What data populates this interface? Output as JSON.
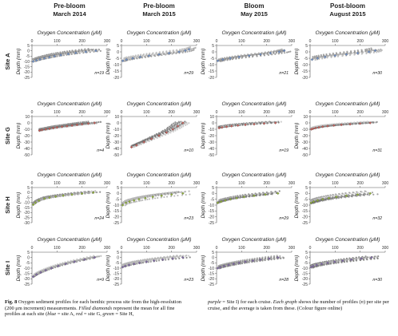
{
  "figure": {
    "columns": [
      {
        "title_line1": "Pre-bloom",
        "title_line2": "March 2014"
      },
      {
        "title_line1": "Pre-bloom",
        "title_line2": "March 2015"
      },
      {
        "title_line1": "Bloom",
        "title_line2": "May 2015"
      },
      {
        "title_line1": "Post-bloom",
        "title_line2": "August 2015"
      }
    ],
    "rows": [
      {
        "label": "Site A",
        "color": "#6f8fc4"
      },
      {
        "label": "Site G",
        "color": "#c0605a"
      },
      {
        "label": "Site H",
        "color": "#8fae3c"
      },
      {
        "label": "Site I",
        "color": "#7f6aa3"
      }
    ],
    "x_axis_title": "Oxygen Concentration (μM)",
    "y_axis_title": "Depth (mm)",
    "profile_gray": "#8a8a8a",
    "mean_marker_shape": "diamond"
  },
  "chart_data": [
    {
      "type": "scatter",
      "site": "Site A",
      "cruise": "Pre-bloom March 2014",
      "n_label": "n=19",
      "xlim": [
        0,
        300
      ],
      "xticks": [
        0,
        100,
        200,
        300
      ],
      "ylim": [
        -25,
        5
      ],
      "yticks": [
        5,
        0,
        -5,
        -10,
        -15,
        -20,
        -25
      ],
      "mean_profile": {
        "depth": [
          0,
          -1,
          -2,
          -3,
          -4,
          -5,
          -6,
          -7,
          -8,
          -9,
          -10
        ],
        "oxygen": [
          255,
          215,
          175,
          145,
          115,
          90,
          70,
          50,
          32,
          18,
          5
        ]
      }
    },
    {
      "type": "scatter",
      "site": "Site A",
      "cruise": "Pre-bloom March 2015",
      "n_label": "n=29",
      "xlim": [
        0,
        300
      ],
      "xticks": [
        0,
        100,
        200,
        300
      ],
      "ylim": [
        -20,
        5
      ],
      "yticks": [
        5,
        0,
        -5,
        -10,
        -15,
        -20
      ],
      "mean_profile": {
        "depth": [
          2,
          1,
          0,
          -1,
          -2,
          -3,
          -4,
          -5,
          -6,
          -7
        ],
        "oxygen": [
          270,
          255,
          230,
          190,
          150,
          110,
          75,
          45,
          20,
          5
        ]
      }
    },
    {
      "type": "scatter",
      "site": "Site A",
      "cruise": "Bloom May 2015",
      "n_label": "n=21",
      "xlim": [
        0,
        300
      ],
      "xticks": [
        0,
        100,
        200,
        300
      ],
      "ylim": [
        -20,
        5
      ],
      "yticks": [
        5,
        0,
        -5,
        -10,
        -15,
        -20
      ],
      "mean_profile": {
        "depth": [
          1,
          0,
          -1,
          -2,
          -3,
          -4,
          -5,
          -6,
          -7
        ],
        "oxygen": [
          270,
          250,
          215,
          175,
          130,
          90,
          55,
          25,
          5
        ]
      }
    },
    {
      "type": "scatter",
      "site": "Site A",
      "cruise": "Post-bloom August 2015",
      "n_label": "n=30",
      "xlim": [
        0,
        300
      ],
      "xticks": [
        0,
        100,
        200,
        300
      ],
      "ylim": [
        -20,
        5
      ],
      "yticks": [
        5,
        0,
        -5,
        -10,
        -15,
        -20
      ],
      "mean_profile": {
        "depth": [
          1,
          0,
          -1,
          -2,
          -3,
          -4,
          -5,
          -6
        ],
        "oxygen": [
          260,
          235,
          190,
          145,
          100,
          60,
          30,
          8
        ]
      }
    },
    {
      "type": "scatter",
      "site": "Site G",
      "cruise": "Pre-bloom March 2014",
      "n_label": "n=4",
      "xlim": [
        0,
        300
      ],
      "xticks": [
        0,
        100,
        200,
        300
      ],
      "ylim": [
        -50,
        10
      ],
      "yticks": [
        10,
        0,
        -10,
        -20,
        -30,
        -40,
        -50
      ],
      "mean_profile": {
        "depth": [
          0,
          -1,
          -2,
          -3,
          -4,
          -5,
          -6,
          -7,
          -8,
          -9,
          -10,
          -11,
          -12
        ],
        "oxygen": [
          250,
          225,
          200,
          180,
          160,
          140,
          120,
          100,
          85,
          70,
          55,
          40,
          30
        ]
      }
    },
    {
      "type": "scatter",
      "site": "Site G",
      "cruise": "Pre-bloom March 2015",
      "n_label": "n=10",
      "xlim": [
        0,
        300
      ],
      "xticks": [
        0,
        100,
        200,
        300
      ],
      "ylim": [
        -50,
        10
      ],
      "yticks": [
        10,
        0,
        -10,
        -20,
        -30,
        -40,
        -50
      ],
      "mean_profile": {
        "depth": [
          0,
          -5,
          -10,
          -15,
          -20,
          -25,
          -30,
          -35,
          -38
        ],
        "oxygen": [
          245,
          225,
          205,
          180,
          150,
          120,
          90,
          60,
          40
        ]
      }
    },
    {
      "type": "scatter",
      "site": "Site G",
      "cruise": "Bloom May 2015",
      "n_label": "n=19",
      "xlim": [
        0,
        300
      ],
      "xticks": [
        0,
        100,
        200,
        300
      ],
      "ylim": [
        -50,
        10
      ],
      "yticks": [
        10,
        0,
        -10,
        -20,
        -30,
        -40,
        -50
      ],
      "mean_profile": {
        "depth": [
          0,
          -1,
          -2,
          -3,
          -4,
          -5,
          -6,
          -7,
          -8
        ],
        "oxygen": [
          235,
          190,
          150,
          115,
          85,
          60,
          40,
          22,
          10
        ]
      }
    },
    {
      "type": "scatter",
      "site": "Site G",
      "cruise": "Post-bloom August 2015",
      "n_label": "n=31",
      "xlim": [
        0,
        300
      ],
      "xticks": [
        0,
        100,
        200,
        300
      ],
      "ylim": [
        -50,
        10
      ],
      "yticks": [
        10,
        0,
        -10,
        -20,
        -30,
        -40,
        -50
      ],
      "mean_profile": {
        "depth": [
          0,
          -1,
          -2,
          -3,
          -4,
          -5,
          -6,
          -7,
          -8,
          -9,
          -10
        ],
        "oxygen": [
          240,
          200,
          160,
          125,
          95,
          70,
          50,
          35,
          22,
          12,
          5
        ]
      }
    },
    {
      "type": "scatter",
      "site": "Site H",
      "cruise": "Pre-bloom March 2014",
      "n_label": "n=24",
      "xlim": [
        0,
        300
      ],
      "xticks": [
        0,
        100,
        200,
        300
      ],
      "ylim": [
        -30,
        5
      ],
      "yticks": [
        5,
        0,
        -5,
        -10,
        -15,
        -20,
        -25,
        -30
      ],
      "mean_profile": {
        "depth": [
          0,
          -1,
          -2,
          -3,
          -4,
          -5,
          -6,
          -8,
          -10,
          -12
        ],
        "oxygen": [
          245,
          200,
          160,
          125,
          95,
          70,
          50,
          28,
          14,
          5
        ]
      }
    },
    {
      "type": "scatter",
      "site": "Site H",
      "cruise": "Pre-bloom March 2015",
      "n_label": "n=23",
      "xlim": [
        0,
        300
      ],
      "xticks": [
        0,
        100,
        200,
        300
      ],
      "ylim": [
        -25,
        5
      ],
      "yticks": [
        5,
        0,
        -5,
        -10,
        -15,
        -20,
        -25
      ],
      "mean_profile": {
        "depth": [
          0,
          -1,
          -2,
          -3,
          -4,
          -5,
          -6,
          -7,
          -8,
          -10
        ],
        "oxygen": [
          245,
          200,
          160,
          125,
          95,
          70,
          50,
          32,
          18,
          5
        ]
      }
    },
    {
      "type": "scatter",
      "site": "Site H",
      "cruise": "Bloom May 2015",
      "n_label": "n=29",
      "xlim": [
        0,
        300
      ],
      "xticks": [
        0,
        100,
        200,
        300
      ],
      "ylim": [
        -25,
        5
      ],
      "yticks": [
        5,
        0,
        -5,
        -10,
        -15,
        -20,
        -25
      ],
      "mean_profile": {
        "depth": [
          0,
          -1,
          -2,
          -3,
          -4,
          -5,
          -6,
          -7,
          -8
        ],
        "oxygen": [
          245,
          195,
          150,
          110,
          80,
          55,
          35,
          18,
          5
        ]
      }
    },
    {
      "type": "scatter",
      "site": "Site H",
      "cruise": "Post-bloom August 2015",
      "n_label": "n=32",
      "xlim": [
        0,
        300
      ],
      "xticks": [
        0,
        100,
        200,
        300
      ],
      "ylim": [
        -25,
        5
      ],
      "yticks": [
        5,
        0,
        -5,
        -10,
        -15,
        -20,
        -25
      ],
      "mean_profile": {
        "depth": [
          0,
          -1,
          -2,
          -3,
          -4,
          -5,
          -6,
          -7,
          -8
        ],
        "oxygen": [
          240,
          190,
          145,
          105,
          75,
          50,
          30,
          14,
          4
        ]
      }
    },
    {
      "type": "scatter",
      "site": "Site I",
      "cruise": "Pre-bloom March 2014",
      "n_label": "n=9",
      "xlim": [
        0,
        300
      ],
      "xticks": [
        0,
        100,
        200,
        300
      ],
      "ylim": [
        -25,
        5
      ],
      "yticks": [
        5,
        0,
        -5,
        -10,
        -15,
        -20,
        -25
      ],
      "mean_profile": {
        "depth": [
          0,
          -2,
          -4,
          -6,
          -8,
          -10,
          -12,
          -14,
          -16,
          -18
        ],
        "oxygen": [
          250,
          210,
          170,
          135,
          105,
          78,
          55,
          35,
          18,
          5
        ]
      }
    },
    {
      "type": "scatter",
      "site": "Site I",
      "cruise": "Pre-bloom March 2015",
      "n_label": "n=23",
      "xlim": [
        0,
        300
      ],
      "xticks": [
        0,
        100,
        200,
        300
      ],
      "ylim": [
        -25,
        5
      ],
      "yticks": [
        5,
        0,
        -5,
        -10,
        -15,
        -20,
        -25
      ],
      "mean_profile": {
        "depth": [
          0,
          -1,
          -2,
          -3,
          -4,
          -5,
          -6,
          -7,
          -8,
          -9
        ],
        "oxygen": [
          245,
          205,
          165,
          130,
          100,
          72,
          50,
          30,
          15,
          5
        ]
      }
    },
    {
      "type": "scatter",
      "site": "Site I",
      "cruise": "Bloom May 2015",
      "n_label": "n=28",
      "xlim": [
        0,
        300
      ],
      "xticks": [
        0,
        100,
        200,
        300
      ],
      "ylim": [
        -25,
        5
      ],
      "yticks": [
        5,
        0,
        -5,
        -10,
        -15,
        -20,
        -25
      ],
      "mean_profile": {
        "depth": [
          0,
          -1,
          -2,
          -3,
          -4,
          -5,
          -6,
          -7,
          -8,
          -9,
          -10
        ],
        "oxygen": [
          245,
          210,
          175,
          145,
          115,
          90,
          68,
          48,
          30,
          15,
          5
        ]
      }
    },
    {
      "type": "scatter",
      "site": "Site I",
      "cruise": "Post-bloom August 2015",
      "n_label": "n=30",
      "xlim": [
        0,
        300
      ],
      "xticks": [
        0,
        100,
        200,
        300
      ],
      "ylim": [
        -25,
        5
      ],
      "yticks": [
        5,
        0,
        -5,
        -10,
        -15,
        -20,
        -25
      ],
      "mean_profile": {
        "depth": [
          0,
          -1,
          -2,
          -3,
          -4,
          -5,
          -6,
          -7,
          -8,
          -9
        ],
        "oxygen": [
          245,
          205,
          165,
          130,
          98,
          70,
          46,
          26,
          12,
          4
        ]
      }
    }
  ],
  "caption": {
    "label": "Fig. 8",
    "text": "Oxygen sediment profiles for each benthic process site from the high-resolution (200 μm increment) measurements.",
    "diamonds": "Filled diamonds",
    "diamonds_rest": "represent the mean for all fine profiles at each site (",
    "blue": "blue",
    "eq_a": "= site A,",
    "red": "red",
    "eq_g": "= site G,",
    "green": "green",
    "eq_h": "= Site H,",
    "purple": "purple",
    "eq_i": "= Site I) for each cruise.",
    "each_graph": "Each graph",
    "right_text_1": "shows the number of profiles (",
    "n_italic": "n",
    "right_text_2": ") per site per cruise, and the average is taken from these. (Colour figure online)"
  }
}
